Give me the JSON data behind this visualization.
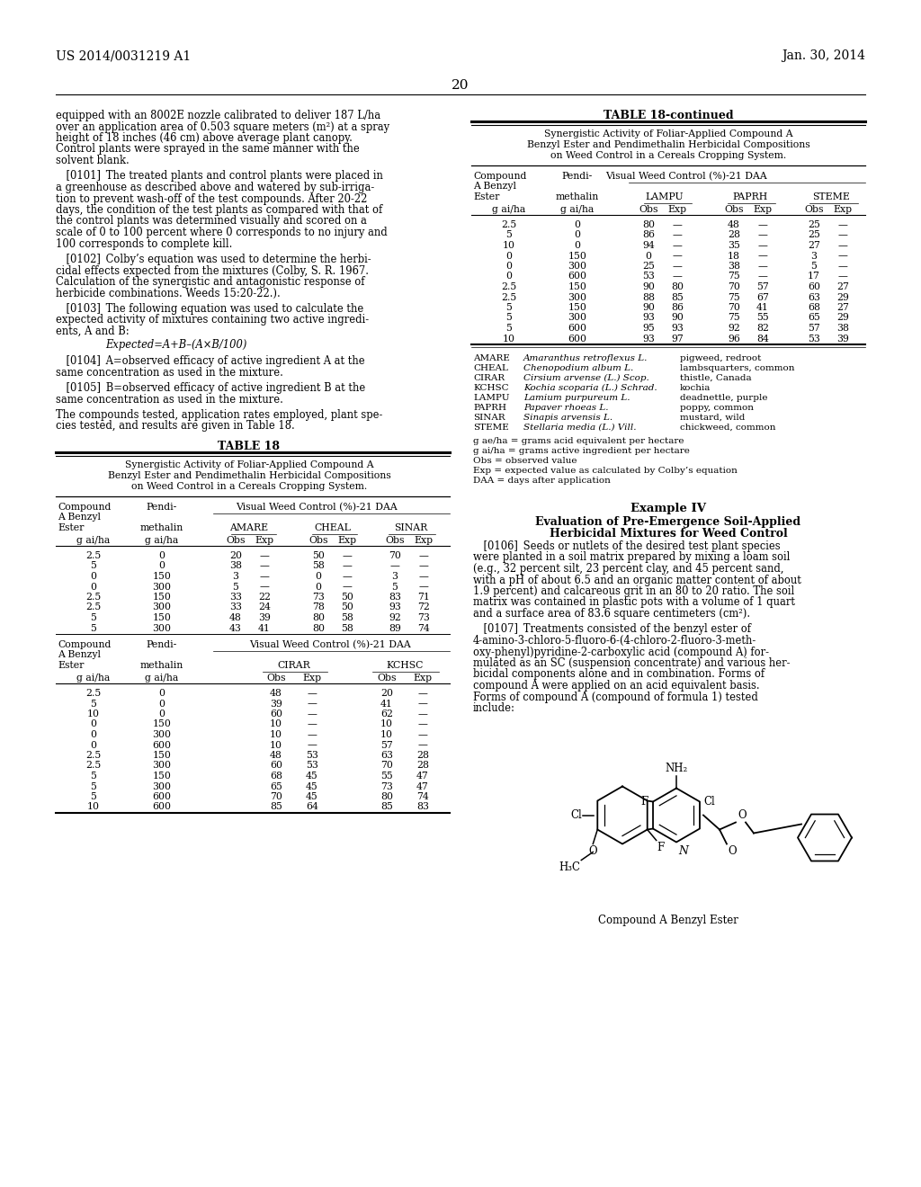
{
  "page_header_left": "US 2014/0031219 A1",
  "page_header_right": "Jan. 30, 2014",
  "page_number": "20",
  "table18_title": "TABLE 18",
  "table18_subtitle": [
    "Synergistic Activity of Foliar-Applied Compound A",
    "Benzyl Ester and Pendimethalin Herbicidal Compositions",
    "on Weed Control in a Cereals Cropping System."
  ],
  "table18_data": [
    [
      "2.5",
      "0",
      "20",
      "—",
      "50",
      "—",
      "70",
      "—"
    ],
    [
      "5",
      "0",
      "38",
      "—",
      "58",
      "—",
      "—",
      "—"
    ],
    [
      "0",
      "150",
      "3",
      "—",
      "0",
      "—",
      "3",
      "—"
    ],
    [
      "0",
      "300",
      "5",
      "—",
      "0",
      "—",
      "5",
      "—"
    ],
    [
      "2.5",
      "150",
      "33",
      "22",
      "73",
      "50",
      "83",
      "71"
    ],
    [
      "2.5",
      "300",
      "33",
      "24",
      "78",
      "50",
      "93",
      "72"
    ],
    [
      "5",
      "150",
      "48",
      "39",
      "80",
      "58",
      "92",
      "73"
    ],
    [
      "5",
      "300",
      "43",
      "41",
      "80",
      "58",
      "89",
      "74"
    ]
  ],
  "table18_data2": [
    [
      "2.5",
      "0",
      "48",
      "—",
      "20",
      "—"
    ],
    [
      "5",
      "0",
      "39",
      "—",
      "41",
      "—"
    ],
    [
      "10",
      "0",
      "60",
      "—",
      "62",
      "—"
    ],
    [
      "0",
      "150",
      "10",
      "—",
      "10",
      "—"
    ],
    [
      "0",
      "300",
      "10",
      "—",
      "10",
      "—"
    ],
    [
      "0",
      "600",
      "10",
      "—",
      "57",
      "—"
    ],
    [
      "2.5",
      "150",
      "48",
      "53",
      "63",
      "28"
    ],
    [
      "2.5",
      "300",
      "60",
      "53",
      "70",
      "28"
    ],
    [
      "5",
      "150",
      "68",
      "45",
      "55",
      "47"
    ],
    [
      "5",
      "300",
      "65",
      "45",
      "73",
      "47"
    ],
    [
      "5",
      "600",
      "70",
      "45",
      "80",
      "74"
    ],
    [
      "10",
      "600",
      "85",
      "64",
      "85",
      "83"
    ]
  ],
  "table18cont_subtitle": [
    "Synergistic Activity of Foliar-Applied Compound A",
    "Benzyl Ester and Pendimethalin Herbicidal Compositions",
    "on Weed Control in a Cereals Cropping System."
  ],
  "table18cont_data": [
    [
      "2.5",
      "0",
      "80",
      "—",
      "48",
      "—",
      "25",
      "—"
    ],
    [
      "5",
      "0",
      "86",
      "—",
      "28",
      "—",
      "25",
      "—"
    ],
    [
      "10",
      "0",
      "94",
      "—",
      "35",
      "—",
      "27",
      "—"
    ],
    [
      "0",
      "150",
      "0",
      "—",
      "18",
      "—",
      "3",
      "—"
    ],
    [
      "0",
      "300",
      "25",
      "—",
      "38",
      "—",
      "5",
      "—"
    ],
    [
      "0",
      "600",
      "53",
      "—",
      "75",
      "—",
      "17",
      "—"
    ],
    [
      "2.5",
      "150",
      "90",
      "80",
      "70",
      "57",
      "60",
      "27"
    ],
    [
      "2.5",
      "300",
      "88",
      "85",
      "75",
      "67",
      "63",
      "29"
    ],
    [
      "5",
      "150",
      "90",
      "86",
      "70",
      "41",
      "68",
      "27"
    ],
    [
      "5",
      "300",
      "93",
      "90",
      "75",
      "55",
      "65",
      "29"
    ],
    [
      "5",
      "600",
      "95",
      "93",
      "92",
      "82",
      "57",
      "38"
    ],
    [
      "10",
      "600",
      "93",
      "97",
      "96",
      "84",
      "53",
      "39"
    ]
  ],
  "abbreviations": [
    [
      "AMARE",
      "Amaranthus retroflexus L.",
      "pigweed, redroot"
    ],
    [
      "CHEAL",
      "Chenopodium album L.",
      "lambsquarters, common"
    ],
    [
      "CIRAR",
      "Cirsium arvense (L.) Scop.",
      "thistle, Canada"
    ],
    [
      "KCHSC",
      "Kochia scoparia (L.) Schrad.",
      "kochia"
    ],
    [
      "LAMPU",
      "Lamium purpureum L.",
      "deadnettle, purple"
    ],
    [
      "PAPRH",
      "Papaver rhoeas L.",
      "poppy, common"
    ],
    [
      "SINAR",
      "Sinapis arvensis L.",
      "mustard, wild"
    ],
    [
      "STEME",
      "Stellaria media (L.) Vill.",
      "chickweed, common"
    ]
  ],
  "footnotes": [
    "g ae/ha = grams acid equivalent per hectare",
    "g ai/ha = grams active ingredient per hectare",
    "Obs = observed value",
    "Exp = expected value as calculated by Colby’s equation",
    "DAA = days after application"
  ]
}
